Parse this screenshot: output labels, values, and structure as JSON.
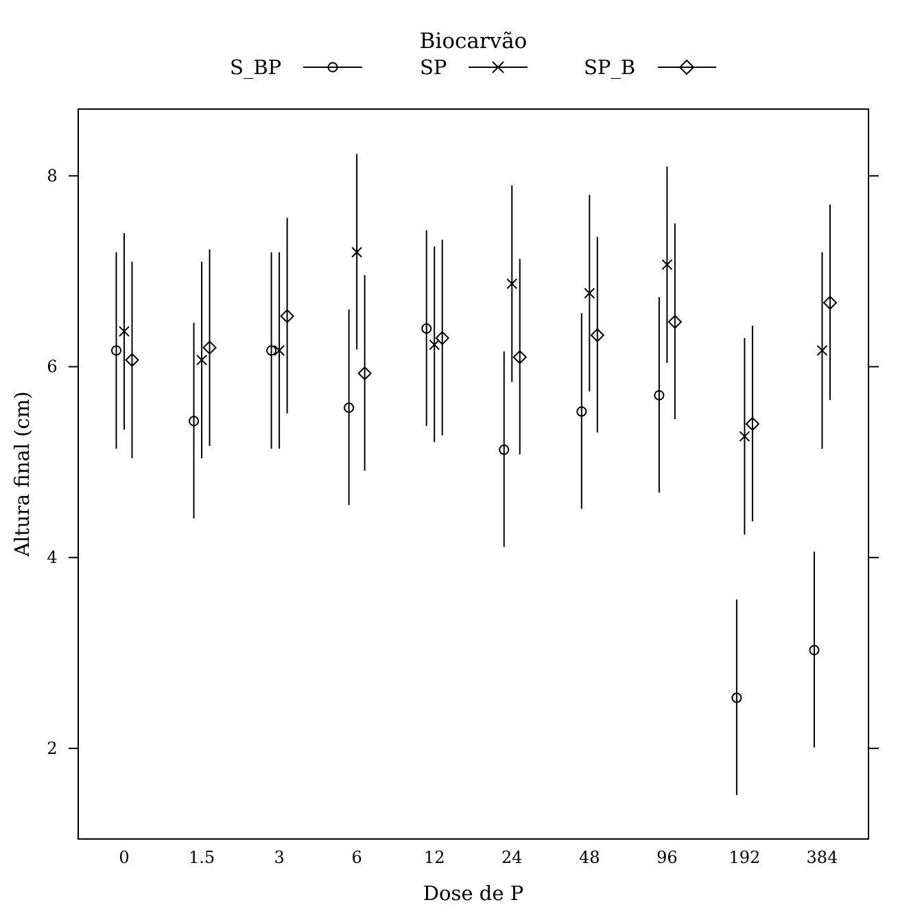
{
  "chart_data": {
    "type": "scatter",
    "legend_title": "Biocarvão",
    "xlabel": "Dose de P",
    "ylabel": "Altura final (cm)",
    "ylim": [
      1.05,
      8.7
    ],
    "yticks": [
      "2",
      "4",
      "6",
      "8"
    ],
    "legend_position": "top",
    "grid": false,
    "categories": [
      "0",
      "1.5",
      "3",
      "6",
      "12",
      "24",
      "48",
      "96",
      "192",
      "384"
    ],
    "series": [
      {
        "name": "S_BP",
        "marker": "circle",
        "values": [
          6.17,
          5.43,
          6.17,
          5.57,
          6.4,
          5.13,
          5.53,
          5.7,
          2.53,
          3.03
        ],
        "lower": [
          5.14,
          4.41,
          5.14,
          4.55,
          5.38,
          4.11,
          4.51,
          4.68,
          1.51,
          2.01
        ],
        "upper": [
          7.2,
          6.46,
          7.2,
          6.6,
          7.43,
          6.16,
          6.56,
          6.73,
          3.56,
          4.06
        ]
      },
      {
        "name": "SP",
        "marker": "cross",
        "values": [
          6.37,
          6.07,
          6.17,
          7.2,
          6.23,
          6.87,
          6.77,
          7.07,
          5.27,
          6.17
        ],
        "lower": [
          5.34,
          5.04,
          5.14,
          6.18,
          5.21,
          5.84,
          5.74,
          6.04,
          4.24,
          5.14
        ],
        "upper": [
          7.4,
          7.1,
          7.2,
          8.23,
          7.26,
          7.9,
          7.8,
          8.1,
          6.3,
          7.2
        ]
      },
      {
        "name": "SP_B",
        "marker": "diamond",
        "values": [
          6.07,
          6.2,
          6.53,
          5.93,
          6.3,
          6.1,
          6.33,
          6.47,
          5.4,
          6.67
        ],
        "lower": [
          5.04,
          5.17,
          5.51,
          4.91,
          5.28,
          5.08,
          5.31,
          5.45,
          4.38,
          5.65
        ],
        "upper": [
          7.1,
          7.23,
          7.56,
          6.96,
          7.33,
          7.13,
          7.36,
          7.5,
          6.43,
          7.7
        ]
      }
    ]
  }
}
